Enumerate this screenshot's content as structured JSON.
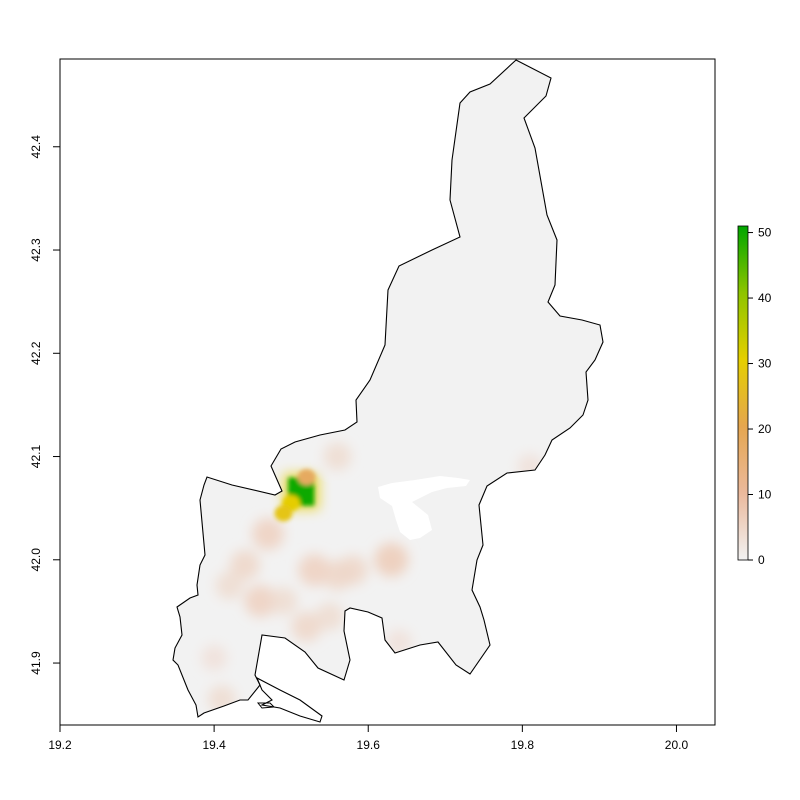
{
  "chart_data": {
    "type": "heatmap",
    "title": "",
    "xlabel": "",
    "ylabel": "",
    "xlim": [
      19.2,
      20.05
    ],
    "ylim": [
      41.84,
      42.485
    ],
    "x_ticks": [
      19.2,
      19.4,
      19.6,
      19.8,
      20.0
    ],
    "x_tick_labels": [
      "19.2",
      "19.4",
      "19.6",
      "19.8",
      "20.0"
    ],
    "y_ticks": [
      41.9,
      42.0,
      42.1,
      42.2,
      42.3,
      42.4
    ],
    "y_tick_labels": [
      "41.9",
      "42.0",
      "42.1",
      "42.2",
      "42.3",
      "42.4"
    ],
    "legend": {
      "placement": "right",
      "range": [
        0,
        51
      ],
      "ticks": [
        0,
        10,
        20,
        30,
        40,
        50
      ],
      "tick_labels": [
        "0",
        "10",
        "20",
        "30",
        "40",
        "50"
      ],
      "colors": [
        "#f2f2f2",
        "#ebb99c",
        "#e5a64f",
        "#e5cf00",
        "#8ec400",
        "#00a600"
      ]
    },
    "background_value": 1,
    "hotspots": [
      {
        "lon": 19.513,
        "lat": 42.066,
        "value": 50
      },
      {
        "lon": 19.5,
        "lat": 42.055,
        "value": 30
      },
      {
        "lon": 19.49,
        "lat": 42.045,
        "value": 28
      },
      {
        "lon": 19.52,
        "lat": 42.08,
        "value": 18
      },
      {
        "lon": 19.47,
        "lat": 42.025,
        "value": 6
      },
      {
        "lon": 19.44,
        "lat": 41.995,
        "value": 5
      },
      {
        "lon": 19.42,
        "lat": 41.975,
        "value": 4
      },
      {
        "lon": 19.46,
        "lat": 41.96,
        "value": 6
      },
      {
        "lon": 19.53,
        "lat": 41.99,
        "value": 6
      },
      {
        "lon": 19.56,
        "lat": 41.985,
        "value": 5
      },
      {
        "lon": 19.58,
        "lat": 41.99,
        "value": 5
      },
      {
        "lon": 19.63,
        "lat": 42.0,
        "value": 7
      },
      {
        "lon": 19.52,
        "lat": 41.935,
        "value": 5
      },
      {
        "lon": 19.4,
        "lat": 41.905,
        "value": 3
      },
      {
        "lon": 19.41,
        "lat": 41.865,
        "value": 4
      },
      {
        "lon": 19.64,
        "lat": 41.92,
        "value": 3
      },
      {
        "lon": 19.56,
        "lat": 42.1,
        "value": 4
      },
      {
        "lon": 19.81,
        "lat": 42.09,
        "value": 3
      },
      {
        "lon": 19.55,
        "lat": 41.945,
        "value": 4
      },
      {
        "lon": 19.49,
        "lat": 41.96,
        "value": 4
      }
    ]
  }
}
